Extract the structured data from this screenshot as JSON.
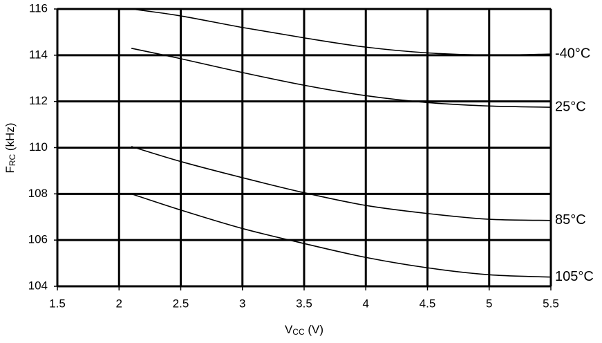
{
  "chart_data": {
    "type": "line",
    "xlabel": {
      "main": "V",
      "sub": "CC",
      "rest": " (V)"
    },
    "ylabel": {
      "main": "F",
      "sub": "RC",
      "rest": " (kHz)"
    },
    "x": [
      2.1,
      2.5,
      3,
      3.5,
      4,
      4.5,
      5,
      5.5
    ],
    "series": [
      {
        "name": "-40°C",
        "color": "#000000",
        "values": [
          116.0,
          115.7,
          115.2,
          114.75,
          114.35,
          114.1,
          114.0,
          114.05
        ]
      },
      {
        "name": "25°C",
        "color": "#000000",
        "values": [
          114.3,
          113.85,
          113.25,
          112.7,
          112.25,
          111.95,
          111.8,
          111.75
        ]
      },
      {
        "name": "85°C",
        "color": "#000000",
        "values": [
          110.05,
          109.4,
          108.7,
          108.05,
          107.5,
          107.15,
          106.9,
          106.85
        ]
      },
      {
        "name": "105°C",
        "color": "#000000",
        "values": [
          108.0,
          107.3,
          106.5,
          105.85,
          105.25,
          104.8,
          104.5,
          104.4
        ]
      }
    ],
    "xlim": [
      1.5,
      5.5
    ],
    "xticks": [
      1.5,
      2,
      2.5,
      3,
      3.5,
      4,
      4.5,
      5,
      5.5
    ],
    "ylim": [
      104,
      116
    ],
    "yticks": [
      104,
      106,
      108,
      110,
      112,
      114,
      116
    ],
    "grid": true
  }
}
